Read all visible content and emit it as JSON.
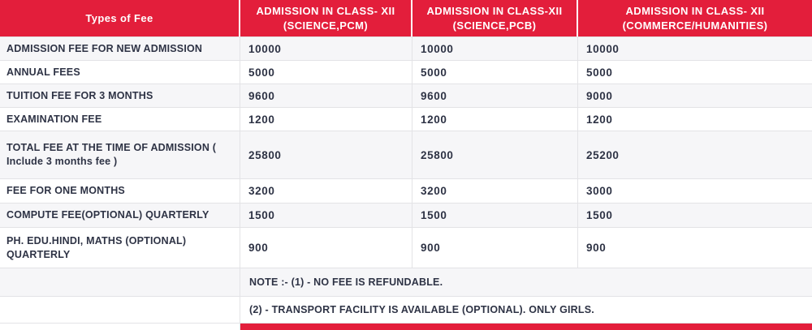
{
  "colors": {
    "accent_red": "#e31e3b",
    "text": "#2e3345",
    "border": "#e3e3e6",
    "row_alt": "#f6f6f8"
  },
  "table": {
    "header": [
      {
        "line1": "Types of Fee",
        "line2": ""
      },
      {
        "line1": "ADMISSION IN CLASS- XII",
        "line2": "(SCIENCE,PCM)"
      },
      {
        "line1": "ADMISSION IN CLASS-XII",
        "line2": "(SCIENCE,PCB)"
      },
      {
        "line1": "ADMISSION IN CLASS- XII",
        "line2": "(COMMERCE/HUMANITIES)"
      }
    ],
    "rows": [
      {
        "label": "ADMISSION FEE FOR NEW ADMISSION",
        "values": [
          "10000",
          "10000",
          "10000"
        ]
      },
      {
        "label": "ANNUAL FEES",
        "values": [
          "5000",
          "5000",
          "5000"
        ]
      },
      {
        "label": "TUITION FEE FOR 3 MONTHS",
        "values": [
          "9600",
          "9600",
          "9000"
        ]
      },
      {
        "label": "EXAMINATION FEE",
        "values": [
          "1200",
          "1200",
          "1200"
        ]
      },
      {
        "label": "TOTAL FEE AT THE TIME OF ADMISSION ( Include 3 months fee )",
        "values": [
          "25800",
          "25800",
          "25200"
        ]
      },
      {
        "label": "FEE FOR ONE MONTHS",
        "values": [
          "3200",
          "3200",
          "3000"
        ]
      },
      {
        "label": "COMPUTE FEE(OPTIONAL) QUARTERLY",
        "values": [
          "1500",
          "1500",
          "1500"
        ]
      },
      {
        "label": "PH. EDU.HINDI, MATHS (OPTIONAL) QUARTERLY",
        "values": [
          "900",
          "900",
          "900"
        ]
      }
    ],
    "notes": [
      "NOTE :- (1) - NO FEE IS REFUNDABLE.",
      "(2) - TRANSPORT FACILITY IS AVAILABLE (OPTIONAL). ONLY GIRLS."
    ]
  }
}
